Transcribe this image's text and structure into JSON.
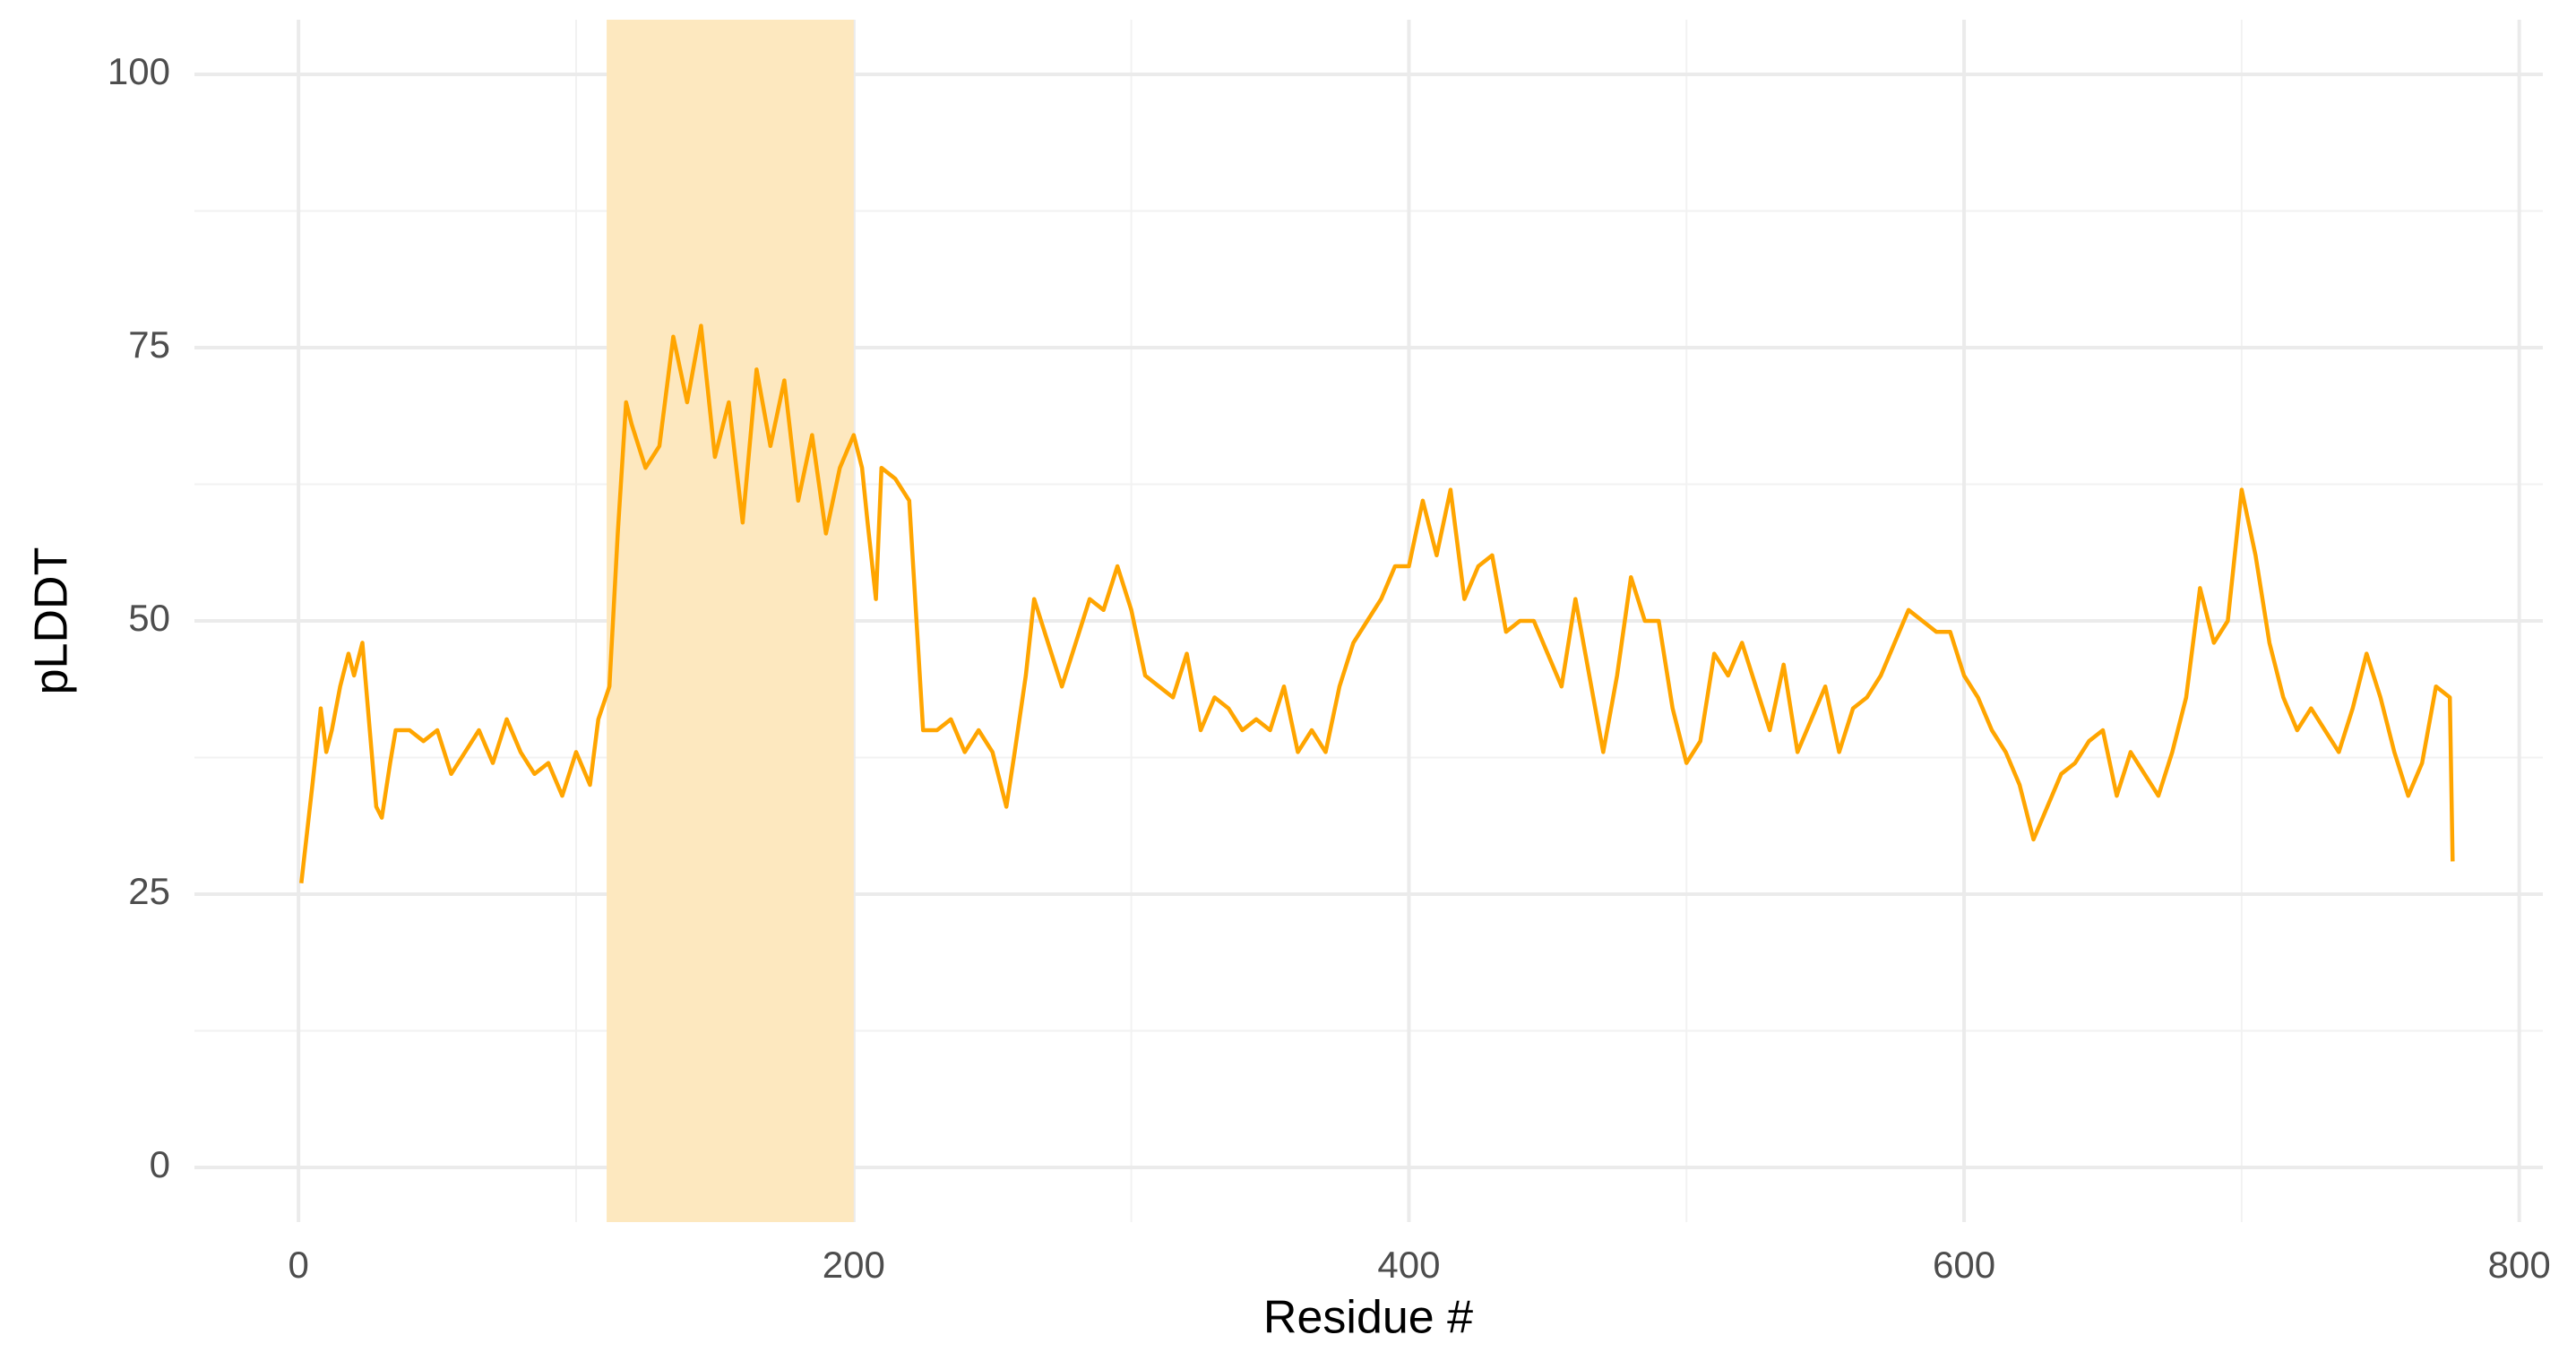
{
  "chart_data": {
    "type": "line",
    "x_label": "Residue #",
    "y_label": "pLDDT",
    "xlim": [
      -37.5,
      808.5
    ],
    "ylim": [
      -5,
      105
    ],
    "xticks": [
      0,
      200,
      400,
      600,
      800
    ],
    "yticks": [
      0,
      25,
      50,
      75,
      100
    ],
    "minor_xticks": [
      100,
      300,
      500,
      700
    ],
    "minor_yticks": [
      12.5,
      37.5,
      62.5,
      87.5
    ],
    "grid": true,
    "highlight": {
      "xmin": 111,
      "xmax": 200,
      "color": "#fde8bf"
    },
    "x": [
      1,
      5,
      8,
      10,
      12,
      15,
      18,
      20,
      23,
      25,
      28,
      30,
      33,
      35,
      40,
      45,
      50,
      55,
      60,
      65,
      70,
      75,
      80,
      85,
      90,
      95,
      100,
      105,
      108,
      112,
      115,
      118,
      120,
      125,
      130,
      135,
      140,
      145,
      150,
      155,
      160,
      165,
      170,
      175,
      180,
      185,
      190,
      195,
      200,
      203,
      205,
      208,
      210,
      215,
      220,
      225,
      230,
      235,
      240,
      245,
      250,
      255,
      258,
      262,
      265,
      270,
      275,
      280,
      285,
      290,
      295,
      300,
      305,
      310,
      315,
      320,
      325,
      330,
      335,
      340,
      345,
      350,
      355,
      360,
      365,
      370,
      375,
      380,
      385,
      390,
      395,
      400,
      405,
      410,
      415,
      420,
      425,
      430,
      435,
      440,
      445,
      450,
      455,
      460,
      465,
      470,
      475,
      480,
      485,
      490,
      495,
      500,
      505,
      510,
      515,
      520,
      525,
      530,
      535,
      540,
      545,
      550,
      555,
      560,
      565,
      570,
      575,
      580,
      585,
      590,
      595,
      600,
      605,
      610,
      615,
      620,
      625,
      630,
      635,
      640,
      645,
      650,
      655,
      660,
      665,
      670,
      675,
      680,
      685,
      690,
      695,
      700,
      705,
      710,
      715,
      720,
      725,
      730,
      735,
      740,
      745,
      750,
      755,
      760,
      765,
      770,
      775,
      776
    ],
    "series": [
      {
        "name": "pLDDT",
        "color": "#ffa500",
        "values": [
          26,
          35,
          42,
          38,
          40,
          44,
          47,
          45,
          48,
          42,
          33,
          32,
          37,
          40,
          40,
          39,
          40,
          36,
          38,
          40,
          37,
          41,
          38,
          36,
          37,
          34,
          38,
          35,
          41,
          44,
          58,
          70,
          68,
          64,
          66,
          76,
          70,
          77,
          65,
          70,
          59,
          73,
          66,
          72,
          61,
          67,
          58,
          64,
          67,
          64,
          59,
          52,
          64,
          63,
          61,
          40,
          40,
          41,
          38,
          40,
          38,
          33,
          38,
          45,
          52,
          48,
          44,
          48,
          52,
          51,
          55,
          51,
          45,
          44,
          43,
          47,
          40,
          43,
          42,
          40,
          41,
          40,
          44,
          38,
          40,
          38,
          44,
          48,
          50,
          52,
          55,
          55,
          61,
          56,
          62,
          52,
          55,
          56,
          49,
          50,
          50,
          47,
          44,
          52,
          45,
          38,
          45,
          54,
          50,
          50,
          42,
          37,
          39,
          47,
          45,
          48,
          44,
          40,
          46,
          38,
          41,
          44,
          38,
          42,
          43,
          45,
          48,
          51,
          50,
          49,
          49,
          45,
          43,
          40,
          38,
          35,
          30,
          33,
          36,
          37,
          39,
          40,
          34,
          38,
          36,
          34,
          38,
          43,
          53,
          48,
          50,
          62,
          56,
          48,
          43,
          40,
          42,
          40,
          38,
          42,
          47,
          43,
          38,
          34,
          37,
          44,
          43,
          28
        ]
      }
    ]
  }
}
